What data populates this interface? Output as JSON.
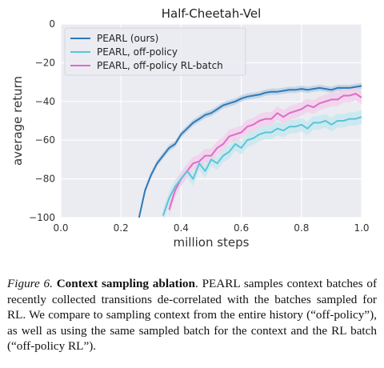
{
  "chart_data": {
    "type": "line",
    "title": "Half-Cheetah-Vel",
    "xlabel": "million steps",
    "ylabel": "average return",
    "xlim": [
      0.0,
      1.0
    ],
    "ylim": [
      -100,
      0
    ],
    "xticks": [
      "0.0",
      "0.2",
      "0.4",
      "0.6",
      "0.8",
      "1.0"
    ],
    "yticks": [
      "0",
      "−20",
      "−40",
      "−60",
      "−80",
      "−100"
    ],
    "grid": true,
    "legend_position": "top-left",
    "series": [
      {
        "name": "PEARL (ours)",
        "color": "#2f7ab8",
        "band_color": "#b7cde0",
        "x": [
          0.26,
          0.28,
          0.3,
          0.32,
          0.34,
          0.36,
          0.38,
          0.4,
          0.42,
          0.44,
          0.46,
          0.48,
          0.5,
          0.52,
          0.54,
          0.56,
          0.58,
          0.6,
          0.62,
          0.64,
          0.66,
          0.68,
          0.7,
          0.72,
          0.74,
          0.76,
          0.78,
          0.8,
          0.82,
          0.84,
          0.86,
          0.88,
          0.9,
          0.92,
          0.94,
          0.96,
          0.98,
          1.0
        ],
        "y": [
          -100,
          -86,
          -78,
          -72,
          -68,
          -64,
          -62,
          -57,
          -54,
          -51,
          -49,
          -47,
          -46,
          -44,
          -42,
          -41,
          -40,
          -38.5,
          -37.5,
          -37,
          -36.5,
          -35.5,
          -35,
          -35,
          -34.5,
          -34,
          -34,
          -33.5,
          -34,
          -33.5,
          -33,
          -33.5,
          -34,
          -33,
          -33,
          -33,
          -32.5,
          -32
        ]
      },
      {
        "name": "PEARL, off-policy",
        "color": "#5bc4d8",
        "band_color": "#c3e8ee",
        "x": [
          0.34,
          0.36,
          0.38,
          0.4,
          0.42,
          0.44,
          0.46,
          0.48,
          0.5,
          0.52,
          0.54,
          0.56,
          0.58,
          0.6,
          0.62,
          0.64,
          0.66,
          0.68,
          0.7,
          0.72,
          0.74,
          0.76,
          0.78,
          0.8,
          0.82,
          0.84,
          0.86,
          0.88,
          0.9,
          0.92,
          0.94,
          0.96,
          0.98,
          1.0
        ],
        "y": [
          -99,
          -90,
          -84,
          -80,
          -76,
          -80,
          -72,
          -76,
          -70,
          -72,
          -68,
          -66,
          -62,
          -64,
          -60,
          -59,
          -57,
          -56,
          -56,
          -54,
          -55,
          -53,
          -53,
          -52,
          -54,
          -51,
          -51,
          -50,
          -52,
          -50,
          -50,
          -49,
          -49,
          -48
        ]
      },
      {
        "name": "PEARL, off-policy RL-batch",
        "color": "#dd6cc8",
        "band_color": "#f2cde9",
        "x": [
          0.36,
          0.38,
          0.4,
          0.42,
          0.44,
          0.46,
          0.48,
          0.5,
          0.52,
          0.54,
          0.56,
          0.58,
          0.6,
          0.62,
          0.64,
          0.66,
          0.68,
          0.7,
          0.72,
          0.74,
          0.76,
          0.78,
          0.8,
          0.82,
          0.84,
          0.86,
          0.88,
          0.9,
          0.92,
          0.94,
          0.96,
          0.98,
          1.0
        ],
        "y": [
          -96,
          -86,
          -80,
          -76,
          -72,
          -71,
          -68,
          -68,
          -64,
          -62,
          -58,
          -57,
          -56,
          -53,
          -52,
          -50,
          -49,
          -49,
          -46,
          -48,
          -46,
          -45,
          -44,
          -42,
          -43,
          -41,
          -40,
          -39,
          -39,
          -37,
          -37,
          -36,
          -38
        ]
      }
    ]
  },
  "caption": {
    "label": "Figure 6.",
    "heading": "Context sampling ablation",
    "body": "PEARL samples context batches of recently collected transitions de-correlated with the batches sampled for RL. We compare to sampling context from the entire history (“off-policy”), as well as using the same sampled batch for the context and the RL batch (“off-policy RL”)."
  }
}
